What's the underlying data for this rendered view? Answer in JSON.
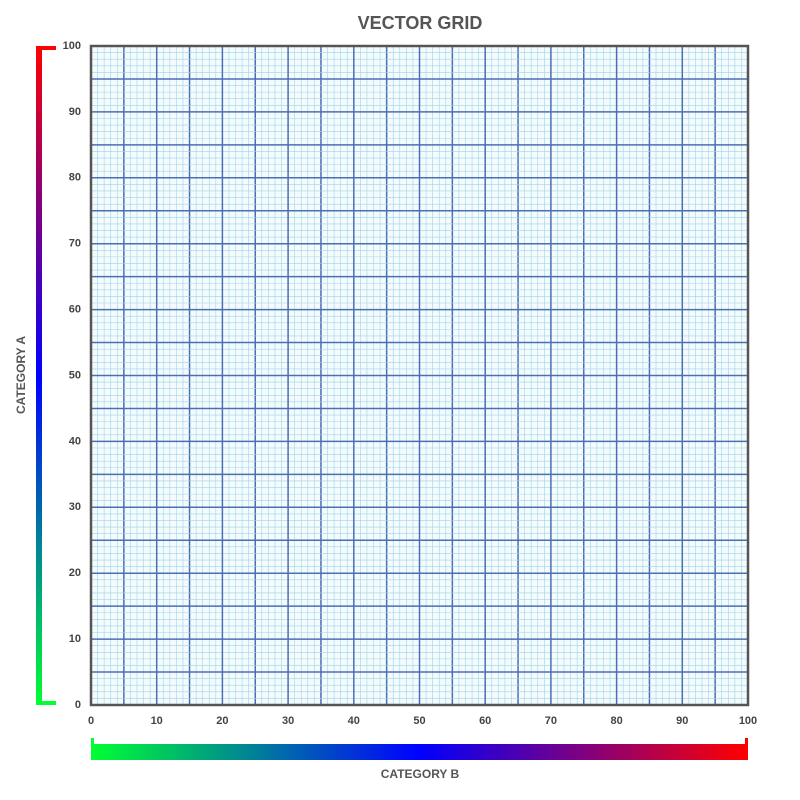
{
  "chart_data": {
    "type": "grid",
    "title": "VECTOR GRID",
    "xlabel": "CATEGORY B",
    "ylabel": "CATEGORY A",
    "xlim": [
      0,
      100
    ],
    "ylim": [
      0,
      100
    ],
    "xticks": [
      0,
      10,
      20,
      30,
      40,
      50,
      60,
      70,
      80,
      90,
      100
    ],
    "yticks": [
      0,
      10,
      20,
      30,
      40,
      50,
      60,
      70,
      80,
      90,
      100
    ],
    "grid": true,
    "gradient": [
      "#00ff33",
      "#0000ff",
      "#ff0000"
    ]
  }
}
